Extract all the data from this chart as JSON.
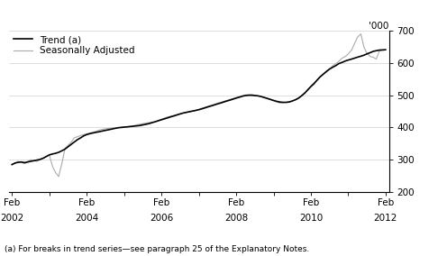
{
  "ylabel_right": "'000",
  "footnote": "(a) For breaks in trend series—see paragraph 25 of the Explanatory Notes.",
  "legend_entries": [
    "Trend (a)",
    "Seasonally Adjusted"
  ],
  "trend_color": "#000000",
  "seasonal_color": "#aaaaaa",
  "ylim": [
    200,
    700
  ],
  "yticks": [
    200,
    300,
    400,
    500,
    600,
    700
  ],
  "x_tick_years": [
    2002,
    2004,
    2006,
    2008,
    2010,
    2012
  ],
  "xlim": [
    2002.0,
    2012.17
  ],
  "trend_data": [
    [
      2002.08,
      285
    ],
    [
      2002.17,
      290
    ],
    [
      2002.25,
      292
    ],
    [
      2002.33,
      293
    ],
    [
      2002.42,
      291
    ],
    [
      2002.5,
      293
    ],
    [
      2002.58,
      295
    ],
    [
      2002.67,
      297
    ],
    [
      2002.75,
      299
    ],
    [
      2002.83,
      301
    ],
    [
      2002.92,
      305
    ],
    [
      2003.0,
      310
    ],
    [
      2003.08,
      315
    ],
    [
      2003.17,
      318
    ],
    [
      2003.25,
      320
    ],
    [
      2003.33,
      323
    ],
    [
      2003.42,
      328
    ],
    [
      2003.5,
      333
    ],
    [
      2003.58,
      340
    ],
    [
      2003.67,
      348
    ],
    [
      2003.75,
      355
    ],
    [
      2003.83,
      362
    ],
    [
      2003.92,
      368
    ],
    [
      2004.0,
      374
    ],
    [
      2004.08,
      378
    ],
    [
      2004.17,
      381
    ],
    [
      2004.25,
      383
    ],
    [
      2004.33,
      385
    ],
    [
      2004.42,
      387
    ],
    [
      2004.5,
      389
    ],
    [
      2004.58,
      391
    ],
    [
      2004.67,
      393
    ],
    [
      2004.75,
      395
    ],
    [
      2004.83,
      397
    ],
    [
      2004.92,
      399
    ],
    [
      2005.0,
      400
    ],
    [
      2005.08,
      401
    ],
    [
      2005.17,
      402
    ],
    [
      2005.25,
      403
    ],
    [
      2005.33,
      404
    ],
    [
      2005.42,
      405
    ],
    [
      2005.5,
      406
    ],
    [
      2005.58,
      408
    ],
    [
      2005.67,
      410
    ],
    [
      2005.75,
      412
    ],
    [
      2005.83,
      415
    ],
    [
      2005.92,
      418
    ],
    [
      2006.0,
      421
    ],
    [
      2006.08,
      424
    ],
    [
      2006.17,
      427
    ],
    [
      2006.25,
      430
    ],
    [
      2006.33,
      433
    ],
    [
      2006.42,
      436
    ],
    [
      2006.5,
      439
    ],
    [
      2006.58,
      442
    ],
    [
      2006.67,
      445
    ],
    [
      2006.75,
      447
    ],
    [
      2006.83,
      449
    ],
    [
      2006.92,
      451
    ],
    [
      2007.0,
      453
    ],
    [
      2007.08,
      455
    ],
    [
      2007.17,
      458
    ],
    [
      2007.25,
      461
    ],
    [
      2007.33,
      464
    ],
    [
      2007.42,
      467
    ],
    [
      2007.5,
      470
    ],
    [
      2007.58,
      473
    ],
    [
      2007.67,
      476
    ],
    [
      2007.75,
      479
    ],
    [
      2007.83,
      482
    ],
    [
      2007.92,
      485
    ],
    [
      2008.0,
      488
    ],
    [
      2008.08,
      491
    ],
    [
      2008.17,
      494
    ],
    [
      2008.25,
      497
    ],
    [
      2008.33,
      499
    ],
    [
      2008.42,
      500
    ],
    [
      2008.5,
      500
    ],
    [
      2008.58,
      499
    ],
    [
      2008.67,
      498
    ],
    [
      2008.75,
      496
    ],
    [
      2008.83,
      493
    ],
    [
      2008.92,
      490
    ],
    [
      2009.0,
      487
    ],
    [
      2009.08,
      484
    ],
    [
      2009.17,
      481
    ],
    [
      2009.25,
      479
    ],
    [
      2009.33,
      478
    ],
    [
      2009.42,
      478
    ],
    [
      2009.5,
      479
    ],
    [
      2009.58,
      482
    ],
    [
      2009.67,
      486
    ],
    [
      2009.75,
      491
    ],
    [
      2009.83,
      498
    ],
    [
      2009.92,
      507
    ],
    [
      2010.0,
      517
    ],
    [
      2010.08,
      527
    ],
    [
      2010.17,
      537
    ],
    [
      2010.25,
      547
    ],
    [
      2010.33,
      557
    ],
    [
      2010.42,
      566
    ],
    [
      2010.5,
      574
    ],
    [
      2010.58,
      581
    ],
    [
      2010.67,
      587
    ],
    [
      2010.75,
      592
    ],
    [
      2010.83,
      598
    ],
    [
      2010.92,
      602
    ],
    [
      2011.0,
      606
    ],
    [
      2011.08,
      609
    ],
    [
      2011.17,
      612
    ],
    [
      2011.25,
      615
    ],
    [
      2011.33,
      618
    ],
    [
      2011.42,
      621
    ],
    [
      2011.5,
      624
    ],
    [
      2011.58,
      628
    ],
    [
      2011.67,
      632
    ],
    [
      2011.75,
      636
    ],
    [
      2011.83,
      638
    ],
    [
      2011.92,
      640
    ],
    [
      2012.08,
      641
    ]
  ],
  "seasonal_data": [
    [
      2002.08,
      285
    ],
    [
      2002.25,
      295
    ],
    [
      2002.42,
      288
    ],
    [
      2002.58,
      300
    ],
    [
      2002.75,
      295
    ],
    [
      2002.92,
      305
    ],
    [
      2003.08,
      315
    ],
    [
      2003.17,
      278
    ],
    [
      2003.25,
      260
    ],
    [
      2003.33,
      248
    ],
    [
      2003.42,
      290
    ],
    [
      2003.5,
      335
    ],
    [
      2003.67,
      355
    ],
    [
      2003.75,
      368
    ],
    [
      2003.92,
      375
    ],
    [
      2004.0,
      378
    ],
    [
      2004.17,
      383
    ],
    [
      2004.33,
      388
    ],
    [
      2004.42,
      392
    ],
    [
      2004.58,
      396
    ],
    [
      2004.75,
      398
    ],
    [
      2004.92,
      400
    ],
    [
      2005.08,
      402
    ],
    [
      2005.25,
      403
    ],
    [
      2005.42,
      408
    ],
    [
      2005.58,
      412
    ],
    [
      2005.75,
      415
    ],
    [
      2005.92,
      418
    ],
    [
      2006.08,
      425
    ],
    [
      2006.17,
      430
    ],
    [
      2006.33,
      435
    ],
    [
      2006.5,
      440
    ],
    [
      2006.67,
      445
    ],
    [
      2006.83,
      448
    ],
    [
      2007.0,
      453
    ],
    [
      2007.17,
      460
    ],
    [
      2007.33,
      466
    ],
    [
      2007.5,
      472
    ],
    [
      2007.67,
      478
    ],
    [
      2007.83,
      484
    ],
    [
      2008.0,
      490
    ],
    [
      2008.17,
      496
    ],
    [
      2008.33,
      501
    ],
    [
      2008.5,
      502
    ],
    [
      2008.67,
      498
    ],
    [
      2008.83,
      493
    ],
    [
      2009.0,
      486
    ],
    [
      2009.17,
      479
    ],
    [
      2009.25,
      476
    ],
    [
      2009.42,
      478
    ],
    [
      2009.58,
      482
    ],
    [
      2009.75,
      490
    ],
    [
      2009.92,
      506
    ],
    [
      2010.08,
      525
    ],
    [
      2010.17,
      534
    ],
    [
      2010.25,
      548
    ],
    [
      2010.33,
      558
    ],
    [
      2010.5,
      572
    ],
    [
      2010.58,
      580
    ],
    [
      2010.67,
      592
    ],
    [
      2010.75,
      598
    ],
    [
      2010.83,
      605
    ],
    [
      2010.92,
      615
    ],
    [
      2011.0,
      620
    ],
    [
      2011.08,
      628
    ],
    [
      2011.17,
      640
    ],
    [
      2011.25,
      660
    ],
    [
      2011.33,
      680
    ],
    [
      2011.42,
      690
    ],
    [
      2011.5,
      650
    ],
    [
      2011.58,
      630
    ],
    [
      2011.67,
      620
    ],
    [
      2011.75,
      618
    ],
    [
      2011.83,
      612
    ],
    [
      2011.92,
      638
    ],
    [
      2012.08,
      641
    ]
  ]
}
